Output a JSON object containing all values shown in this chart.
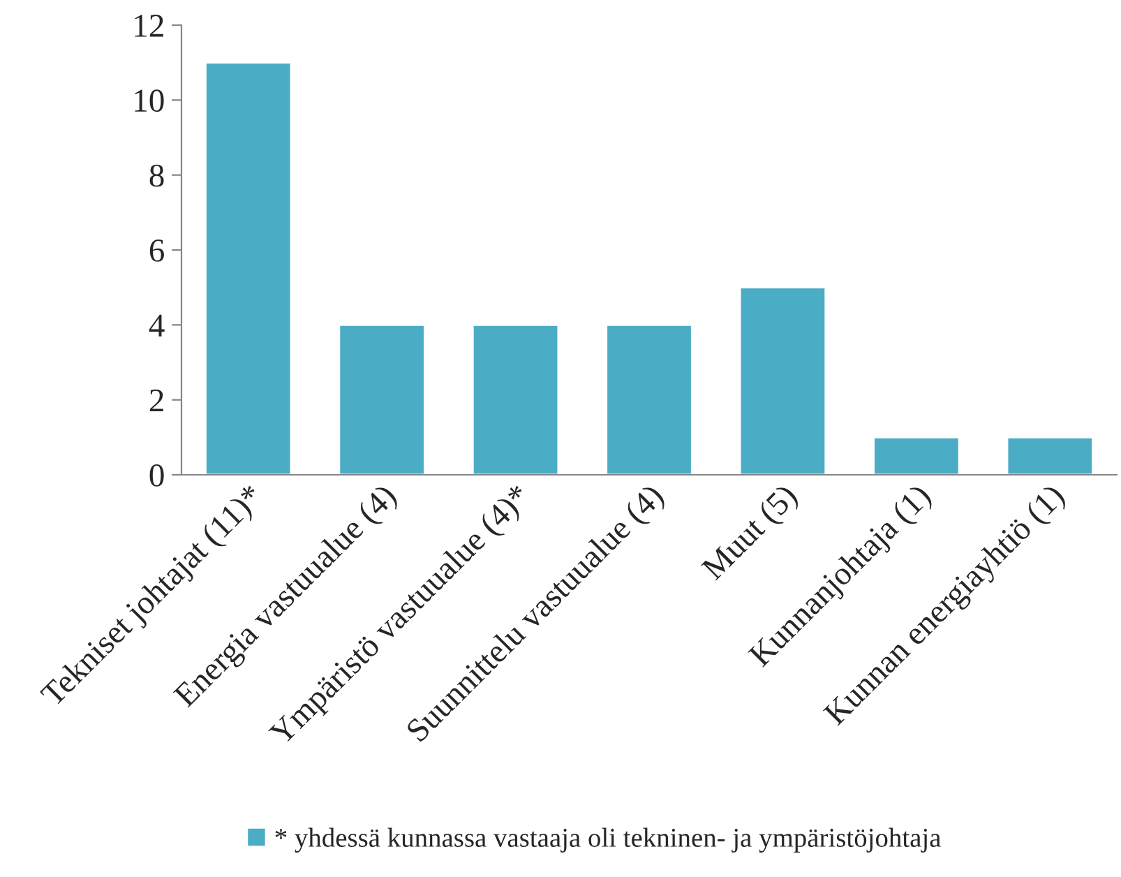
{
  "chart_data": {
    "type": "bar",
    "categories": [
      "Tekniset johtajat (11)*",
      "Energia vastuualue (4)",
      "Ympäristö vastuualue (4)*",
      "Suunnittelu vastuualue (4)",
      "Muut (5)",
      "Kunnanjohtaja (1)",
      "Kunnan energiayhtiö (1)"
    ],
    "series": [
      {
        "name": "* yhdessä kunnassa vastaaja oli tekninen- ja ympäristöjohtaja",
        "color": "#4bacc6",
        "values": [
          11,
          4,
          4,
          4,
          5,
          1,
          1
        ]
      }
    ],
    "ylim": [
      0,
      12
    ],
    "yticks": [
      0,
      2,
      4,
      6,
      8,
      10,
      12
    ],
    "grid": false,
    "legend": "bottom"
  }
}
